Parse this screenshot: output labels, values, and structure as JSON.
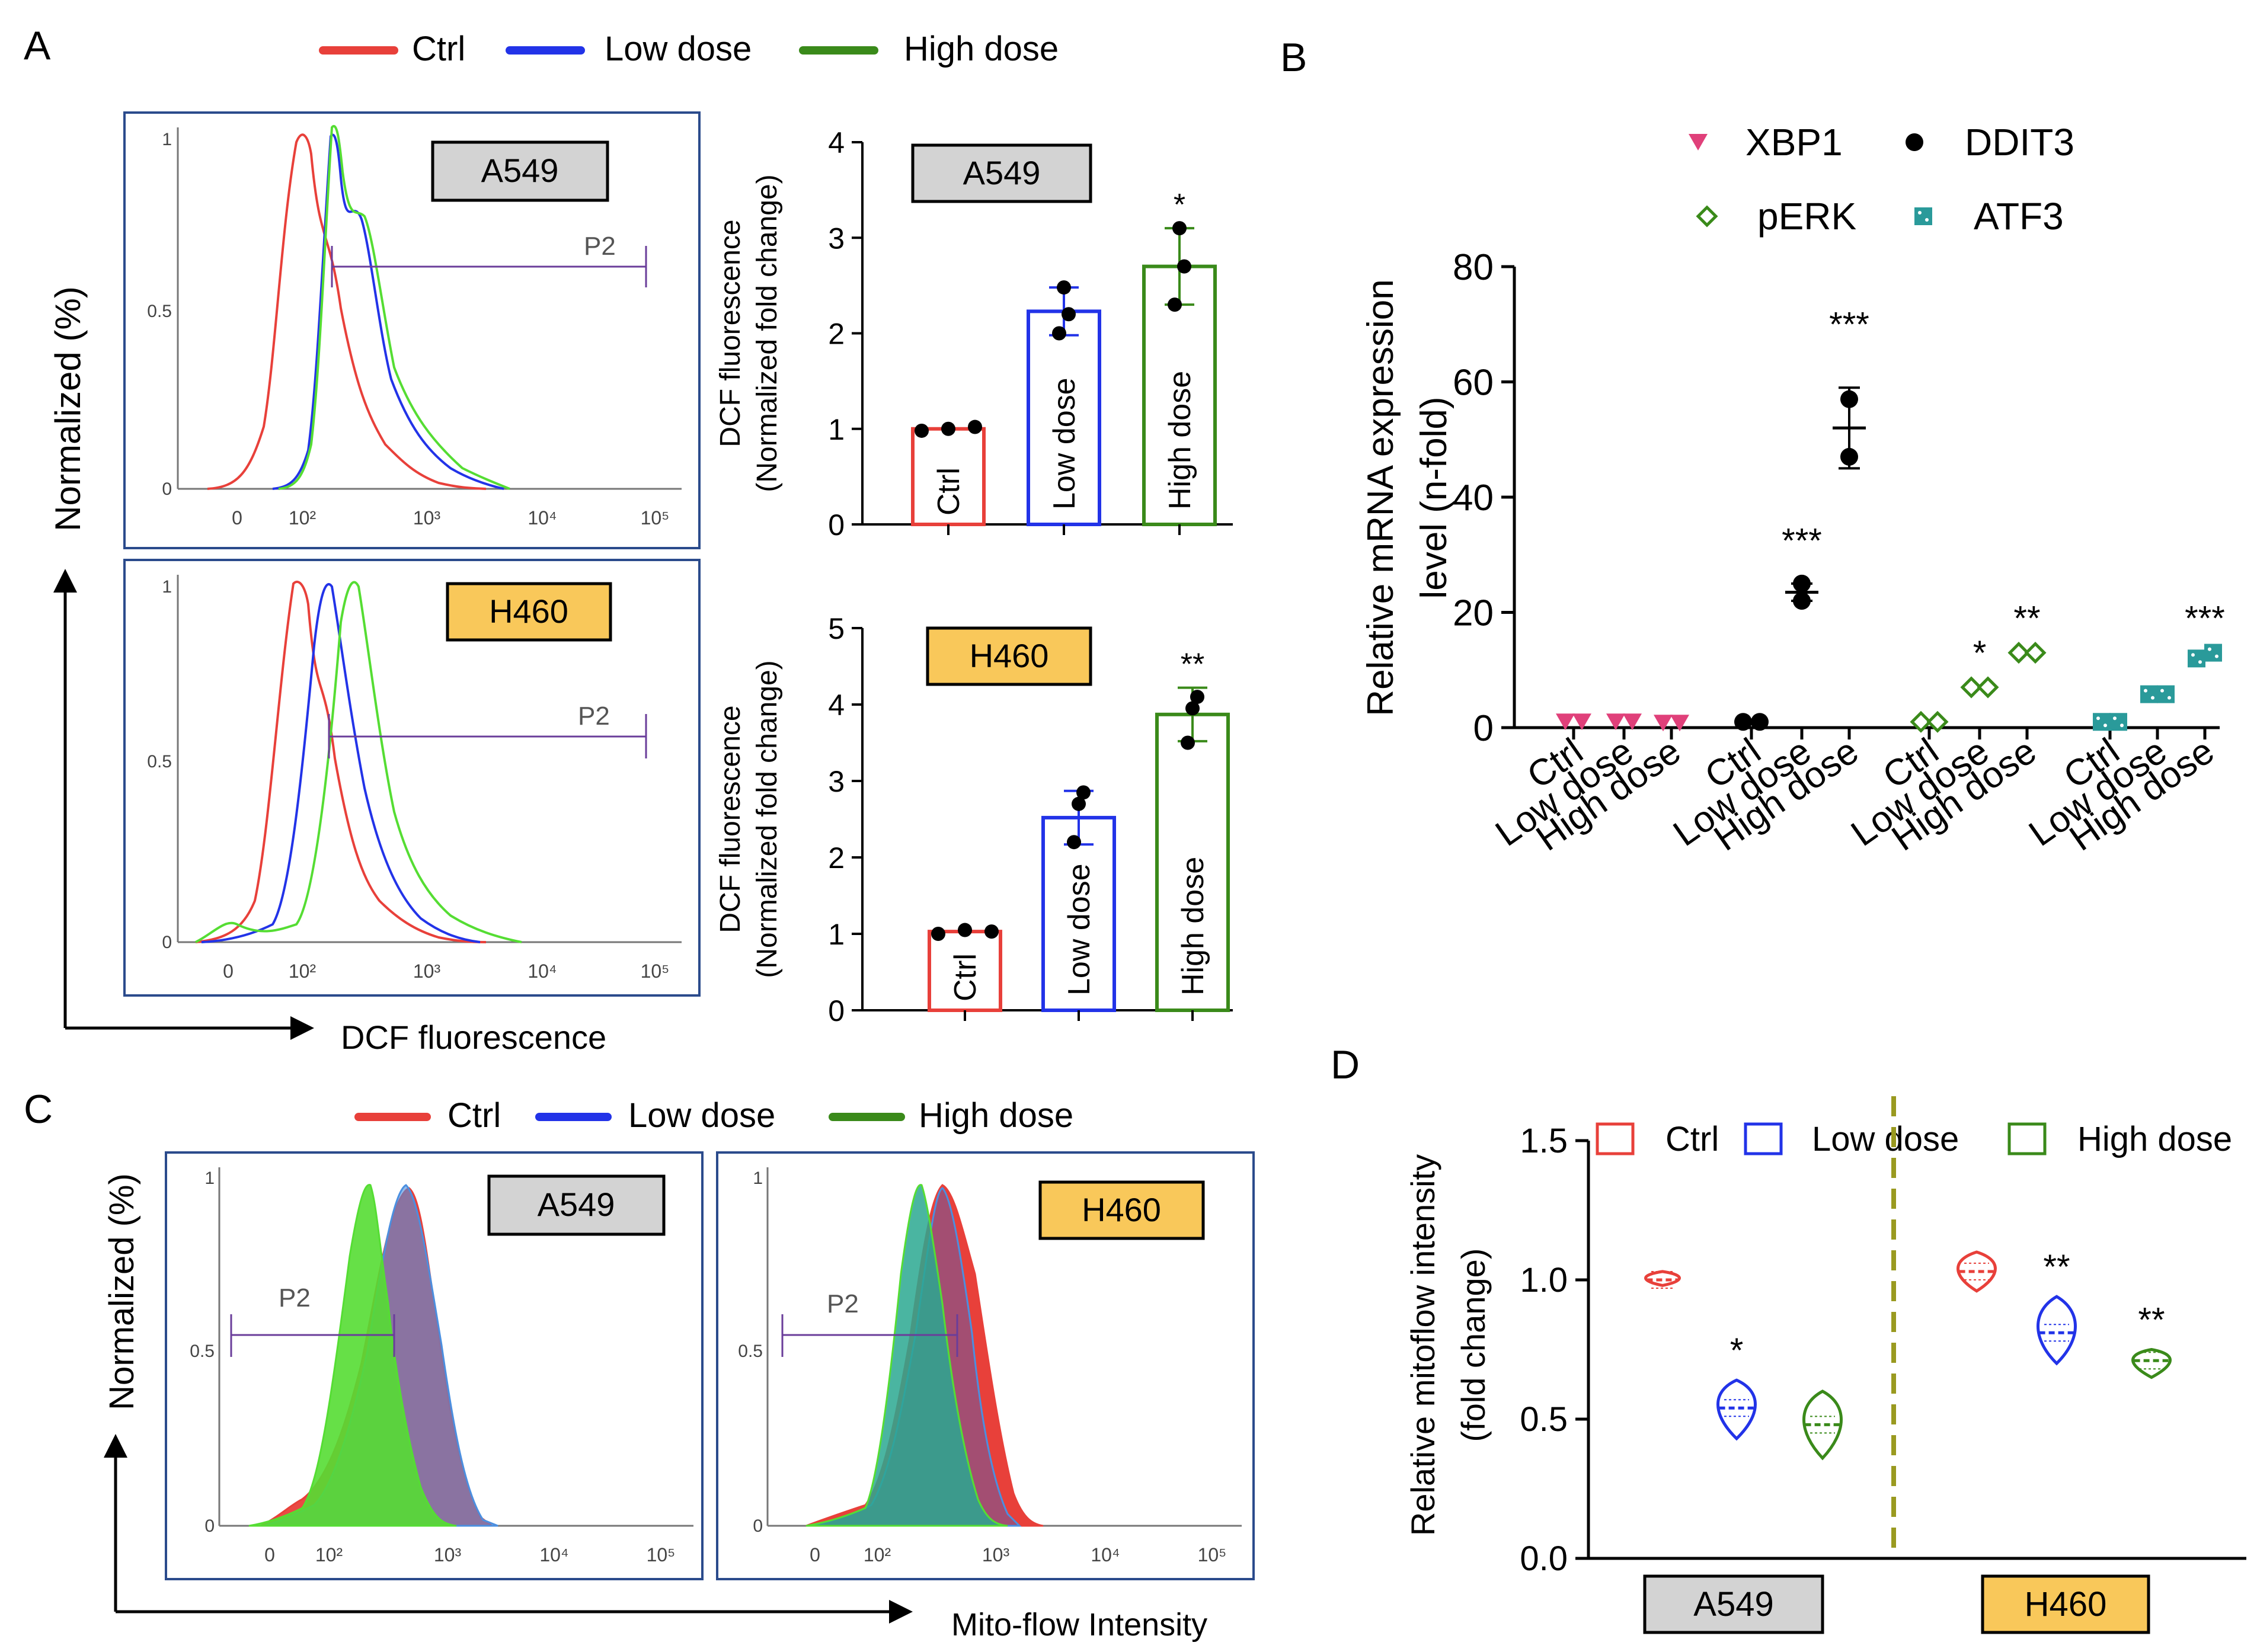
{
  "colors": {
    "ctrl": "#e8403a",
    "low": "#2233e8",
    "high": "#3a8a1a",
    "green_light": "#55dd33",
    "purple": "#6a3d9a",
    "frame": "#2b4b8c",
    "pink": "#e0407a",
    "teal": "#2a9a9a",
    "yellow": "#f9c85a",
    "gray": "#d3d3d3",
    "olive": "#9a9a20"
  },
  "panel_labels": {
    "a": "A",
    "b": "B",
    "c": "C",
    "d": "D"
  },
  "legend": {
    "ctrl": "Ctrl",
    "low": "Low dose",
    "high": "High dose"
  },
  "cells": {
    "a549": "A549",
    "h460": "H460"
  },
  "gate": "P2",
  "axes": {
    "normalized": "Normalized (%)",
    "dcf": "DCF fluorescence",
    "dcf_line1": "DCF fluorescence",
    "dcf_line2": "(Normalized fold change)",
    "mrna_line1": "Relative mRNA expression",
    "mrna_line2": "level (n-fold)",
    "mito_line1": "Relative mitoflow intensity",
    "mito_line2": "(fold change)",
    "mito_x": "Mito-flow Intensity"
  },
  "flow_ticks": {
    "y": {
      "t0": "0",
      "t05": "0.5",
      "t1": "1"
    },
    "x": {
      "t0": "0",
      "t2": "10²",
      "t3": "10³",
      "t4": "10⁴",
      "t5": "10⁵"
    }
  },
  "chart_data": [
    {
      "id": "A-flow-A549",
      "type": "line",
      "title": "A549",
      "xlabel": "DCF fluorescence",
      "ylabel": "Normalized (%)",
      "x_scale": "log (biexponential)",
      "x_ticks": [
        "0",
        "10²",
        "10³",
        "10⁴",
        "10⁵"
      ],
      "y_ticks": [
        "0",
        "0.5",
        "1"
      ],
      "series": [
        {
          "name": "Ctrl",
          "peak_at": "~10²",
          "peak": 1.0
        },
        {
          "name": "Low dose",
          "peak_at": "~2×10²",
          "peak": 1.0
        },
        {
          "name": "High dose",
          "peak_at": "~2×10²",
          "peak": 1.0
        }
      ],
      "annotation": "P2 gate"
    },
    {
      "id": "A-flow-H460",
      "type": "line",
      "title": "H460",
      "xlabel": "DCF fluorescence",
      "ylabel": "Normalized (%)",
      "x_ticks": [
        "0",
        "10²",
        "10³",
        "10⁴",
        "10⁵"
      ],
      "y_ticks": [
        "0",
        "0.5",
        "1"
      ],
      "series": [
        {
          "name": "Ctrl",
          "peak_at": "~10²",
          "peak": 1.0
        },
        {
          "name": "Low dose",
          "peak_at": "~1.5×10²",
          "peak": 1.0
        },
        {
          "name": "High dose",
          "peak_at": "~2.5×10²",
          "peak": 1.0
        }
      ],
      "annotation": "P2 gate"
    },
    {
      "id": "A-bar-A549",
      "type": "bar",
      "title": "A549",
      "categories": [
        "Ctrl",
        "Low dose",
        "High dose"
      ],
      "values": [
        1.0,
        2.23,
        2.7
      ],
      "sd": [
        0.02,
        0.25,
        0.4
      ],
      "points": [
        [
          0.98,
          1.0,
          1.02
        ],
        [
          2.0,
          2.2,
          2.48
        ],
        [
          2.3,
          2.7,
          3.1
        ]
      ],
      "significance": [
        "",
        "",
        "*"
      ],
      "ylabel": "DCF fluorescence (Normalized fold change)",
      "ylim": [
        0,
        4
      ],
      "y_ticks": [
        "0",
        "1",
        "2",
        "3",
        "4"
      ]
    },
    {
      "id": "A-bar-H460",
      "type": "bar",
      "title": "H460",
      "categories": [
        "Ctrl",
        "Low dose",
        "High dose"
      ],
      "values": [
        1.03,
        2.52,
        3.87
      ],
      "sd": [
        0.03,
        0.35,
        0.35
      ],
      "points": [
        [
          1.0,
          1.05,
          1.03
        ],
        [
          2.2,
          2.85,
          2.7
        ],
        [
          3.5,
          4.1,
          3.95
        ]
      ],
      "significance": [
        "",
        "",
        "**"
      ],
      "ylabel": "DCF fluorescence (Normalized fold change)",
      "ylim": [
        0,
        5
      ],
      "y_ticks": [
        "0",
        "1",
        "2",
        "3",
        "4",
        "5"
      ]
    },
    {
      "id": "B-scatter",
      "type": "scatter",
      "ylabel": "Relative mRNA expression level (n-fold)",
      "ylim": [
        0,
        80
      ],
      "y_ticks": [
        "0",
        "20",
        "40",
        "60",
        "80"
      ],
      "categories": [
        "Ctrl",
        "Low dose",
        "High dose"
      ],
      "series": [
        {
          "name": "XBP1",
          "marker": "triangle-down",
          "means": [
            1,
            1,
            0.8
          ],
          "points": [
            [
              1,
              1
            ],
            [
              1,
              1
            ],
            [
              0.8,
              0.8
            ]
          ],
          "significance": [
            "",
            "",
            ""
          ]
        },
        {
          "name": "DDIT3",
          "marker": "circle",
          "means": [
            1,
            23.5,
            52
          ],
          "sd": [
            0,
            1.5,
            7
          ],
          "points": [
            [
              1,
              1
            ],
            [
              25,
              22
            ],
            [
              57,
              47
            ]
          ],
          "significance": [
            "",
            "***",
            "***"
          ]
        },
        {
          "name": "pERK",
          "marker": "diamond",
          "means": [
            1,
            7,
            13
          ],
          "points": [
            [
              1,
              1
            ],
            [
              7,
              7
            ],
            [
              13,
              13
            ]
          ],
          "significance": [
            "",
            "*",
            "**"
          ]
        },
        {
          "name": "ATF3",
          "marker": "square",
          "means": [
            1,
            5.8,
            12.5
          ],
          "points": [
            [
              1,
              1
            ],
            [
              5.8,
              5.8
            ],
            [
              12,
              13
            ]
          ],
          "significance": [
            "",
            "",
            "***"
          ]
        }
      ]
    },
    {
      "id": "C-flow-A549",
      "type": "area",
      "title": "A549",
      "xlabel": "Mito-flow Intensity",
      "ylabel": "Normalized (%)",
      "x_ticks": [
        "0",
        "10²",
        "10³",
        "10⁴",
        "10⁵"
      ],
      "y_ticks": [
        "0",
        "0.5",
        "1"
      ],
      "series": [
        "Ctrl",
        "Low dose",
        "High dose"
      ],
      "annotation": "P2 gate"
    },
    {
      "id": "C-flow-H460",
      "type": "area",
      "title": "H460",
      "xlabel": "Mito-flow Intensity",
      "ylabel": "Normalized (%)",
      "x_ticks": [
        "0",
        "10²",
        "10³",
        "10⁴",
        "10⁵"
      ],
      "y_ticks": [
        "0",
        "0.5",
        "1"
      ],
      "series": [
        "Ctrl",
        "Low dose",
        "High dose"
      ],
      "annotation": "P2 gate"
    },
    {
      "id": "D-violin",
      "type": "violin",
      "ylabel": "Relative mitoflow intensity (fold change)",
      "ylim": [
        0,
        1.5
      ],
      "y_ticks": [
        "0.0",
        "0.5",
        "1.0",
        "1.5"
      ],
      "groups": [
        {
          "name": "A549",
          "categories": [
            "Ctrl",
            "Low dose",
            "High dose"
          ],
          "medians": [
            1.0,
            0.54,
            0.48
          ],
          "ranges": [
            [
              0.98,
              1.03
            ],
            [
              0.43,
              0.64
            ],
            [
              0.36,
              0.6
            ]
          ],
          "significance": [
            "",
            "*",
            ""
          ]
        },
        {
          "name": "H460",
          "categories": [
            "Ctrl",
            "Low dose",
            "High dose"
          ],
          "medians": [
            1.03,
            0.81,
            0.71
          ],
          "ranges": [
            [
              0.96,
              1.1
            ],
            [
              0.7,
              0.94
            ],
            [
              0.65,
              0.75
            ]
          ],
          "significance": [
            "",
            "**",
            "**"
          ]
        }
      ]
    }
  ]
}
